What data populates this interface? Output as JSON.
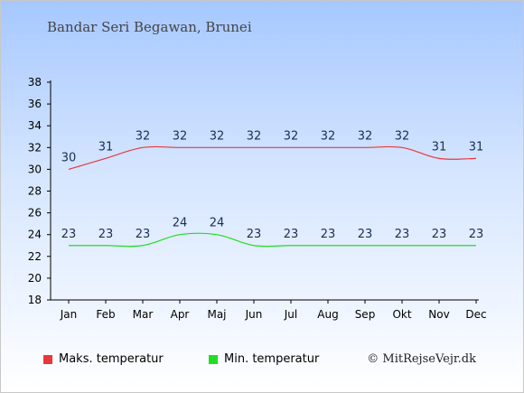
{
  "title": "Bandar Seri Begawan, Brunei",
  "credit": "© MitRejseVejr.dk",
  "chart_data": {
    "type": "line",
    "categories": [
      "Jan",
      "Feb",
      "Mar",
      "Apr",
      "Maj",
      "Jun",
      "Jul",
      "Aug",
      "Sep",
      "Okt",
      "Nov",
      "Dec"
    ],
    "ylim": [
      18,
      38
    ],
    "yticks": [
      18,
      20,
      22,
      24,
      26,
      28,
      30,
      32,
      34,
      36,
      38
    ],
    "grid": false,
    "legend_position": "bottom-left",
    "series": [
      {
        "name": "Maks. temperatur",
        "color": "#e8383d",
        "values": [
          30,
          31,
          32,
          32,
          32,
          32,
          32,
          32,
          32,
          32,
          31,
          31
        ]
      },
      {
        "name": "Min. temperatur",
        "color": "#22dd22",
        "values": [
          23,
          23,
          23,
          24,
          24,
          23,
          23,
          23,
          23,
          23,
          23,
          23
        ]
      }
    ]
  }
}
